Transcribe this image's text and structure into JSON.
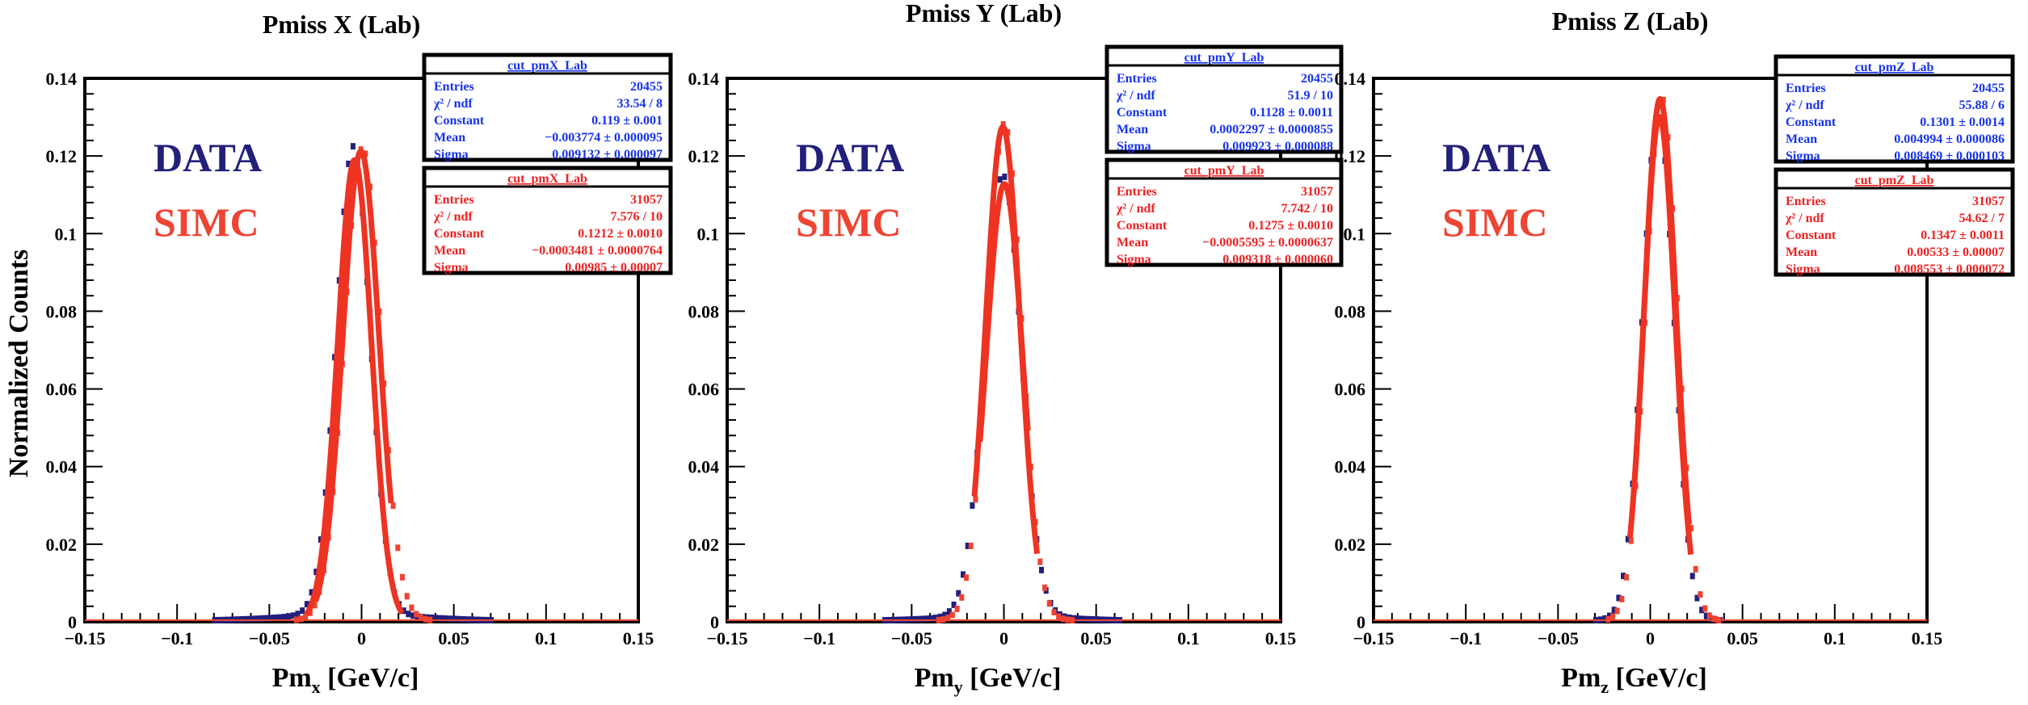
{
  "figure": {
    "ylabel": "Normalized Counts"
  },
  "chart_data": [
    {
      "type": "scatter",
      "title": "Pmiss X (Lab)",
      "xlabel_main": "Pm",
      "xlabel_sub": "x",
      "xlabel_unit": " [GeV/c]",
      "xlim": [
        -0.15,
        0.15
      ],
      "ylim": [
        0,
        0.14
      ],
      "xticks": [
        -0.15,
        -0.1,
        -0.05,
        0,
        0.05,
        0.1,
        0.15
      ],
      "xtick_labels": [
        "−0.15",
        "−0.1",
        "−0.05",
        "0",
        "0.05",
        "0.1",
        "0.15"
      ],
      "yticks": [
        0,
        0.02,
        0.04,
        0.06,
        0.08,
        0.1,
        0.12,
        0.14
      ],
      "ytick_labels": [
        "0",
        "0.02",
        "0.04",
        "0.06",
        "0.08",
        "0.1",
        "0.12",
        "0.14"
      ],
      "legend": [
        {
          "label": "DATA",
          "color": "#22207a"
        },
        {
          "label": "SIMC",
          "color": "#ee4433"
        }
      ],
      "series": [
        {
          "name": "DATA",
          "color": "#22207a",
          "mean": -0.003774,
          "sigma": 0.009132,
          "constant": 0.119,
          "bins": 120,
          "tail": 0.0035,
          "fit_range": [
            -0.03,
            0.022
          ]
        },
        {
          "name": "SIMC",
          "color": "#ee4433",
          "mean": -0.0003481,
          "sigma": 0.00985,
          "constant": 0.1212,
          "bins": 120,
          "tail": 0.001,
          "fit_range": [
            -0.025,
            0.016
          ]
        }
      ],
      "stats": [
        {
          "header": "cut_pmX_Lab",
          "color": "#1833ee",
          "rows": [
            {
              "label": "Entries",
              "value": "20455"
            },
            {
              "label": "χ² / ndf",
              "value": "33.54 / 8"
            },
            {
              "label": "Constant",
              "value": "0.119  ± 0.001"
            },
            {
              "label": "Mean",
              "value": "−0.003774  ± 0.000095"
            },
            {
              "label": "Sigma",
              "value": "0.009132  ± 0.000097"
            }
          ]
        },
        {
          "header": "cut_pmX_Lab",
          "color": "#ee2222",
          "rows": [
            {
              "label": "Entries",
              "value": "31057"
            },
            {
              "label": "χ² / ndf",
              "value": "7.576 / 10"
            },
            {
              "label": "Constant",
              "value": "0.1212  ± 0.0010"
            },
            {
              "label": "Mean",
              "value": "−0.0003481  ± 0.0000764"
            },
            {
              "label": "Sigma",
              "value": "0.00985  ± 0.00007"
            }
          ]
        }
      ]
    },
    {
      "type": "scatter",
      "title": "Pmiss Y (Lab)",
      "xlabel_main": "Pm",
      "xlabel_sub": "y",
      "xlabel_unit": " [GeV/c]",
      "xlim": [
        -0.15,
        0.15
      ],
      "ylim": [
        0,
        0.14
      ],
      "xticks": [
        -0.15,
        -0.1,
        -0.05,
        0,
        0.05,
        0.1,
        0.15
      ],
      "xtick_labels": [
        "−0.15",
        "−0.1",
        "−0.05",
        "0",
        "0.05",
        "0.1",
        "0.15"
      ],
      "yticks": [
        0,
        0.02,
        0.04,
        0.06,
        0.08,
        0.1,
        0.12,
        0.14
      ],
      "ytick_labels": [
        "0",
        "0.02",
        "0.04",
        "0.06",
        "0.08",
        "0.1",
        "0.12",
        "0.14"
      ],
      "legend": [
        {
          "label": "DATA",
          "color": "#22207a"
        },
        {
          "label": "SIMC",
          "color": "#ee4433"
        }
      ],
      "series": [
        {
          "name": "DATA",
          "color": "#22207a",
          "mean": 0.0002297,
          "sigma": 0.009923,
          "constant": 0.1128,
          "bins": 120,
          "tail": 0.0025,
          "fit_range": [
            -0.013,
            0.013
          ]
        },
        {
          "name": "SIMC",
          "color": "#ee4433",
          "mean": -0.0005595,
          "sigma": 0.009318,
          "constant": 0.1275,
          "bins": 120,
          "tail": 0.001,
          "fit_range": [
            -0.016,
            0.018
          ]
        }
      ],
      "stats": [
        {
          "header": "cut_pmY_Lab",
          "color": "#1833ee",
          "rows": [
            {
              "label": "Entries",
              "value": "20455"
            },
            {
              "label": "χ² / ndf",
              "value": "51.9 / 10"
            },
            {
              "label": "Constant",
              "value": "0.1128  ± 0.0011"
            },
            {
              "label": "Mean",
              "value": "0.0002297  ± 0.0000855"
            },
            {
              "label": "Sigma",
              "value": "0.009923  ± 0.000088"
            }
          ]
        },
        {
          "header": "cut_pmY_Lab",
          "color": "#ee2222",
          "rows": [
            {
              "label": "Entries",
              "value": "31057"
            },
            {
              "label": "χ² / ndf",
              "value": "7.742 / 10"
            },
            {
              "label": "Constant",
              "value": "0.1275  ± 0.0010"
            },
            {
              "label": "Mean",
              "value": "−0.0005595  ± 0.0000637"
            },
            {
              "label": "Sigma",
              "value": "0.009318  ± 0.000060"
            }
          ]
        }
      ]
    },
    {
      "type": "scatter",
      "title": "Pmiss Z (Lab)",
      "xlabel_main": "Pm",
      "xlabel_sub": "z",
      "xlabel_unit": " [GeV/c]",
      "xlim": [
        -0.15,
        0.15
      ],
      "ylim": [
        0,
        0.14
      ],
      "xticks": [
        -0.15,
        -0.1,
        -0.05,
        0,
        0.05,
        0.1,
        0.15
      ],
      "xtick_labels": [
        "−0.15",
        "−0.1",
        "−0.05",
        "0",
        "0.05",
        "0.1",
        "0.15"
      ],
      "yticks": [
        0,
        0.02,
        0.04,
        0.06,
        0.08,
        0.1,
        0.12,
        0.14
      ],
      "ytick_labels": [
        "0",
        "0.02",
        "0.04",
        "0.06",
        "0.08",
        "0.1",
        "0.12",
        "0.14"
      ],
      "legend": [
        {
          "label": "DATA",
          "color": "#22207a"
        },
        {
          "label": "SIMC",
          "color": "#ee4433"
        }
      ],
      "series": [
        {
          "name": "DATA",
          "color": "#22207a",
          "mean": 0.004994,
          "sigma": 0.008469,
          "constant": 0.1301,
          "bins": 120,
          "tail": 0.001,
          "fit_range": [
            -0.009,
            0.022
          ]
        },
        {
          "name": "SIMC",
          "color": "#ee4433",
          "mean": 0.00533,
          "sigma": 0.008553,
          "constant": 0.1347,
          "bins": 120,
          "tail": 0.0005,
          "fit_range": [
            -0.011,
            0.021
          ]
        }
      ],
      "stats": [
        {
          "header": "cut_pmZ_Lab",
          "color": "#1833ee",
          "rows": [
            {
              "label": "Entries",
              "value": "20455"
            },
            {
              "label": "χ² / ndf",
              "value": "55.88 / 6"
            },
            {
              "label": "Constant",
              "value": "0.1301  ± 0.0014"
            },
            {
              "label": "Mean",
              "value": "0.004994  ± 0.000086"
            },
            {
              "label": "Sigma",
              "value": "0.008469  ± 0.000103"
            }
          ]
        },
        {
          "header": "cut_pmZ_Lab",
          "color": "#ee2222",
          "rows": [
            {
              "label": "Entries",
              "value": "31057"
            },
            {
              "label": "χ² / ndf",
              "value": "54.62 / 7"
            },
            {
              "label": "Constant",
              "value": "0.1347  ± 0.0011"
            },
            {
              "label": "Mean",
              "value": "0.00533  ± 0.00007"
            },
            {
              "label": "Sigma",
              "value": "0.008553  ± 0.000072"
            }
          ]
        }
      ]
    }
  ]
}
